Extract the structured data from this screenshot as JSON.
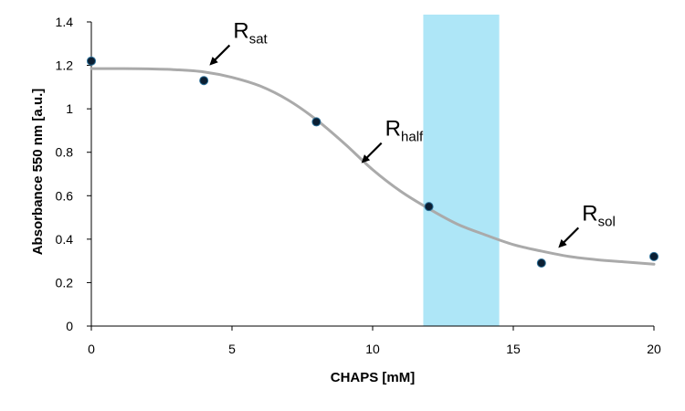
{
  "chart_data": {
    "type": "scatter",
    "title": "",
    "xlabel": "CHAPS [mM]",
    "ylabel": "Absorbance 550 nm [a.u.]",
    "xlim": [
      0,
      20
    ],
    "ylim": [
      0,
      1.4
    ],
    "x_ticks": [
      0,
      5,
      10,
      15,
      20
    ],
    "y_ticks": [
      0,
      0.2,
      0.4,
      0.6,
      0.8,
      1,
      1.2,
      1.4
    ],
    "x_tick_labels": [
      "0",
      "5",
      "10",
      "15",
      "20"
    ],
    "y_tick_labels": [
      "0",
      "0.2",
      "0.4",
      "0.6",
      "0.8",
      "1",
      "1.2",
      "1.4"
    ],
    "grid": false,
    "series": [
      {
        "type": "scatter",
        "x": [
          0,
          4,
          8,
          12,
          16,
          20
        ],
        "y": [
          1.22,
          1.13,
          0.94,
          0.55,
          0.29,
          0.32
        ],
        "color": "#0b1f33"
      },
      {
        "type": "line",
        "x": [
          0,
          1,
          2,
          3,
          4,
          5,
          6,
          7,
          8,
          9,
          10,
          11,
          12,
          13,
          14,
          15,
          16,
          17,
          18,
          19,
          20
        ],
        "y": [
          1.185,
          1.185,
          1.184,
          1.18,
          1.17,
          1.145,
          1.105,
          1.04,
          0.95,
          0.84,
          0.72,
          0.62,
          0.54,
          0.47,
          0.42,
          0.375,
          0.345,
          0.32,
          0.305,
          0.295,
          0.285
        ],
        "color": "#aaaaaa"
      }
    ],
    "highlight_band": {
      "x_range": [
        11.8,
        14.5
      ],
      "color": "#aee6f7"
    },
    "annotations": [
      {
        "main": "R",
        "sub": "sat",
        "point": [
          4.2,
          1.2
        ]
      },
      {
        "main": "R",
        "sub": "half",
        "point": [
          9.6,
          0.75
        ]
      },
      {
        "main": "R",
        "sub": "sol",
        "point": [
          16.6,
          0.36
        ]
      }
    ]
  }
}
